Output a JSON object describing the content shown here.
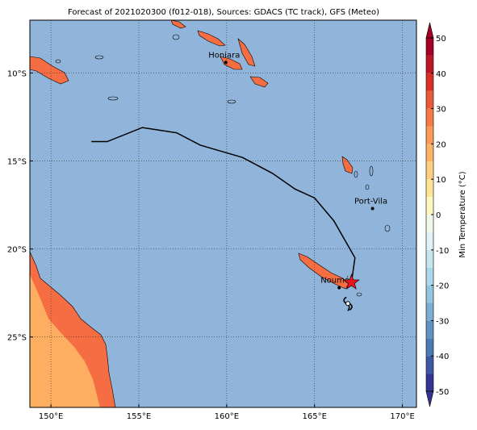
{
  "map": {
    "title": "Forecast of 2021020300 (f012-018), Sources: GDACS (TC track), GFS (Meteo)",
    "xlim": [
      148.8,
      170.8
    ],
    "ylim": [
      -29,
      -7
    ],
    "xticks": [
      {
        "value": 150,
        "label": "150°E"
      },
      {
        "value": 155,
        "label": "155°E"
      },
      {
        "value": 160,
        "label": "160°E"
      },
      {
        "value": 165,
        "label": "165°E"
      },
      {
        "value": 170,
        "label": "170°E"
      }
    ],
    "yticks": [
      {
        "value": -10,
        "label": "10°S"
      },
      {
        "value": -15,
        "label": "15°S"
      },
      {
        "value": -20,
        "label": "20°S"
      },
      {
        "value": -25,
        "label": "25°S"
      }
    ],
    "grid": true,
    "ocean_color": "#91b5da",
    "track": {
      "color": "#000000",
      "lon": [
        152.3,
        153.2,
        155.2,
        157.15,
        158.5,
        160.9,
        162.6,
        163.9,
        165.0,
        166.1,
        167.3,
        167.1
      ],
      "lat": [
        -13.9,
        -13.9,
        -13.1,
        -13.4,
        -14.1,
        -14.8,
        -15.7,
        -16.6,
        -17.1,
        -18.4,
        -20.5,
        -21.9
      ]
    },
    "current_position": {
      "lon": 167.1,
      "lat": -21.9,
      "color": "#e8141c"
    },
    "forecast_position": {
      "lon": 166.9,
      "lat": -23.1
    },
    "cities": [
      {
        "name": "Honiara",
        "lon": 159.95,
        "lat": -9.4
      },
      {
        "name": "Port-Vila",
        "lon": 168.3,
        "lat": -17.7
      },
      {
        "name": "Nouméa",
        "lon": 166.4,
        "lat": -22.2
      }
    ],
    "colorbar": {
      "label": "Min Temperature (°C)",
      "lim": [
        -50,
        50
      ],
      "ticks": [
        50,
        40,
        30,
        20,
        10,
        0,
        -10,
        -20,
        -30,
        -40,
        -50
      ],
      "colors": [
        "#313695",
        "#3e58a6",
        "#4a7bb7",
        "#6092c2",
        "#7aafd2",
        "#92c5de",
        "#abd9e9",
        "#c5e5f0",
        "#e0f3f8",
        "#f0f9ea",
        "#fff7c0",
        "#fee696",
        "#fed081",
        "#fdb366",
        "#fb9a58",
        "#f57a48",
        "#e75a3a",
        "#d73027",
        "#bb1728",
        "#a50026"
      ]
    }
  }
}
